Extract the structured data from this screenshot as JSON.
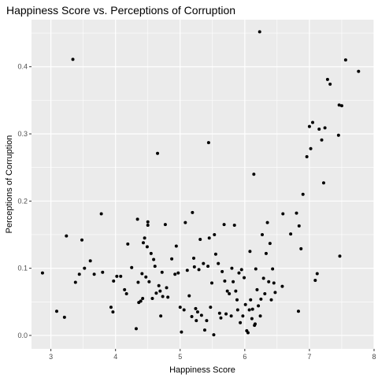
{
  "chart_data": {
    "type": "scatter",
    "title": "Happiness Score vs. Perceptions of Corruption",
    "xlabel": "Happiness Score",
    "ylabel": "Perceptions of Corruption",
    "xlim": [
      2.7,
      8.0
    ],
    "ylim": [
      -0.02,
      0.47
    ],
    "x_ticks": [
      3,
      4,
      5,
      6,
      7,
      8
    ],
    "y_ticks": [
      0.0,
      0.1,
      0.2,
      0.3,
      0.4
    ],
    "y_tick_labels": [
      "0.0",
      "0.1",
      "0.2",
      "0.3",
      "0.4"
    ],
    "grid": true,
    "legend": "none",
    "colors": {
      "panel": "#ebebeb",
      "grid_major": "#ffffff",
      "point": "#000000"
    },
    "points": [
      [
        2.87,
        0.093
      ],
      [
        3.09,
        0.036
      ],
      [
        3.21,
        0.027
      ],
      [
        3.24,
        0.148
      ],
      [
        3.34,
        0.411
      ],
      [
        3.38,
        0.079
      ],
      [
        3.44,
        0.091
      ],
      [
        3.48,
        0.142
      ],
      [
        3.52,
        0.1
      ],
      [
        3.61,
        0.111
      ],
      [
        3.67,
        0.091
      ],
      [
        3.78,
        0.181
      ],
      [
        3.8,
        0.094
      ],
      [
        3.93,
        0.042
      ],
      [
        3.96,
        0.035
      ],
      [
        3.97,
        0.081
      ],
      [
        4.02,
        0.088
      ],
      [
        4.08,
        0.088
      ],
      [
        4.14,
        0.068
      ],
      [
        4.17,
        0.062
      ],
      [
        4.19,
        0.136
      ],
      [
        4.25,
        0.101
      ],
      [
        4.32,
        0.01
      ],
      [
        4.34,
        0.173
      ],
      [
        4.35,
        0.079
      ],
      [
        4.36,
        0.049
      ],
      [
        4.39,
        0.051
      ],
      [
        4.41,
        0.092
      ],
      [
        4.42,
        0.055
      ],
      [
        4.43,
        0.138
      ],
      [
        4.45,
        0.145
      ],
      [
        4.47,
        0.087
      ],
      [
        4.49,
        0.132
      ],
      [
        4.5,
        0.169
      ],
      [
        4.5,
        0.164
      ],
      [
        4.52,
        0.08
      ],
      [
        4.55,
        0.122
      ],
      [
        4.57,
        0.055
      ],
      [
        4.59,
        0.113
      ],
      [
        4.61,
        0.103
      ],
      [
        4.63,
        0.063
      ],
      [
        4.65,
        0.271
      ],
      [
        4.67,
        0.074
      ],
      [
        4.69,
        0.066
      ],
      [
        4.7,
        0.029
      ],
      [
        4.72,
        0.094
      ],
      [
        4.73,
        0.058
      ],
      [
        4.77,
        0.165
      ],
      [
        4.79,
        0.071
      ],
      [
        4.81,
        0.057
      ],
      [
        4.87,
        0.114
      ],
      [
        4.92,
        0.091
      ],
      [
        4.94,
        0.133
      ],
      [
        4.97,
        0.093
      ],
      [
        5.0,
        0.042
      ],
      [
        5.02,
        0.005
      ],
      [
        5.06,
        0.038
      ],
      [
        5.08,
        0.168
      ],
      [
        5.11,
        0.097
      ],
      [
        5.14,
        0.059
      ],
      [
        5.18,
        0.028
      ],
      [
        5.19,
        0.183
      ],
      [
        5.21,
        0.115
      ],
      [
        5.22,
        0.102
      ],
      [
        5.24,
        0.04
      ],
      [
        5.25,
        0.022
      ],
      [
        5.27,
        0.035
      ],
      [
        5.29,
        0.098
      ],
      [
        5.31,
        0.143
      ],
      [
        5.33,
        0.03
      ],
      [
        5.36,
        0.107
      ],
      [
        5.38,
        0.008
      ],
      [
        5.41,
        0.022
      ],
      [
        5.43,
        0.103
      ],
      [
        5.44,
        0.287
      ],
      [
        5.45,
        0.145
      ],
      [
        5.47,
        0.042
      ],
      [
        5.49,
        0.078
      ],
      [
        5.52,
        0.001
      ],
      [
        5.53,
        0.15
      ],
      [
        5.55,
        0.121
      ],
      [
        5.59,
        0.107
      ],
      [
        5.61,
        0.033
      ],
      [
        5.63,
        0.026
      ],
      [
        5.65,
        0.095
      ],
      [
        5.68,
        0.165
      ],
      [
        5.69,
        0.081
      ],
      [
        5.71,
        0.032
      ],
      [
        5.73,
        0.066
      ],
      [
        5.76,
        0.062
      ],
      [
        5.79,
        0.029
      ],
      [
        5.8,
        0.1
      ],
      [
        5.82,
        0.08
      ],
      [
        5.84,
        0.164
      ],
      [
        5.86,
        0.066
      ],
      [
        5.88,
        0.053
      ],
      [
        5.89,
        0.038
      ],
      [
        5.91,
        0.093
      ],
      [
        5.93,
        0.019
      ],
      [
        5.95,
        0.098
      ],
      [
        5.97,
        0.029
      ],
      [
        5.99,
        0.086
      ],
      [
        6.01,
        0.046
      ],
      [
        6.03,
        0.007
      ],
      [
        6.05,
        0.004
      ],
      [
        6.07,
        0.038
      ],
      [
        6.08,
        0.125
      ],
      [
        6.09,
        0.053
      ],
      [
        6.11,
        0.025
      ],
      [
        6.12,
        0.039
      ],
      [
        6.14,
        0.24
      ],
      [
        6.15,
        0.015
      ],
      [
        6.16,
        0.017
      ],
      [
        6.17,
        0.099
      ],
      [
        6.19,
        0.068
      ],
      [
        6.21,
        0.044
      ],
      [
        6.23,
        0.452
      ],
      [
        6.24,
        0.029
      ],
      [
        6.25,
        0.054
      ],
      [
        6.27,
        0.15
      ],
      [
        6.29,
        0.085
      ],
      [
        6.31,
        0.062
      ],
      [
        6.33,
        0.122
      ],
      [
        6.35,
        0.168
      ],
      [
        6.37,
        0.08
      ],
      [
        6.39,
        0.137
      ],
      [
        6.41,
        0.053
      ],
      [
        6.43,
        0.099
      ],
      [
        6.45,
        0.078
      ],
      [
        6.47,
        0.064
      ],
      [
        6.58,
        0.073
      ],
      [
        6.59,
        0.181
      ],
      [
        6.71,
        0.151
      ],
      [
        6.8,
        0.182
      ],
      [
        6.83,
        0.036
      ],
      [
        6.84,
        0.163
      ],
      [
        6.87,
        0.129
      ],
      [
        6.9,
        0.21
      ],
      [
        6.96,
        0.266
      ],
      [
        7.0,
        0.311
      ],
      [
        7.02,
        0.278
      ],
      [
        7.05,
        0.317
      ],
      [
        7.09,
        0.082
      ],
      [
        7.12,
        0.092
      ],
      [
        7.15,
        0.307
      ],
      [
        7.19,
        0.291
      ],
      [
        7.22,
        0.227
      ],
      [
        7.24,
        0.309
      ],
      [
        7.28,
        0.381
      ],
      [
        7.32,
        0.374
      ],
      [
        7.45,
        0.298
      ],
      [
        7.46,
        0.343
      ],
      [
        7.47,
        0.118
      ],
      [
        7.5,
        0.342
      ],
      [
        7.56,
        0.41
      ],
      [
        7.76,
        0.393
      ]
    ]
  }
}
